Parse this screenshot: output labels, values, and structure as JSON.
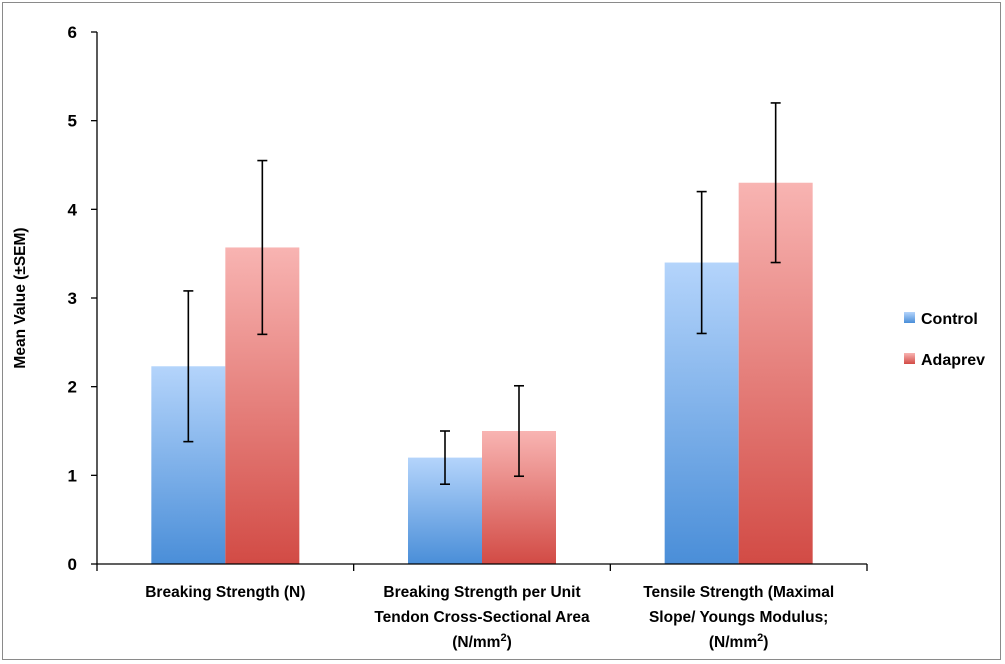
{
  "chart_data": {
    "type": "bar",
    "ylabel": "Mean Value (±SEM)",
    "ylim": [
      0,
      6
    ],
    "yticks": [
      "0",
      "1",
      "2",
      "3",
      "4",
      "5",
      "6"
    ],
    "grid": false,
    "legend_position": "right",
    "categories": [
      {
        "lines": [
          "Breaking Strength (N)"
        ]
      },
      {
        "lines": [
          "Breaking Strength per Unit",
          "Tendon Cross-Sectional Area",
          "(N/mm2)"
        ]
      },
      {
        "lines": [
          "Tensile Strength (Maximal",
          "Slope/ Youngs Modulus;",
          "(N/mm2)"
        ]
      }
    ],
    "series": [
      {
        "name": "Control",
        "values": [
          2.23,
          1.2,
          3.4
        ],
        "errors": [
          0.85,
          0.3,
          0.8
        ],
        "color_top": "#b4d4fb",
        "color_bottom": "#4a8ed8"
      },
      {
        "name": "Adaprev",
        "values": [
          3.57,
          1.5,
          4.3
        ],
        "errors": [
          0.98,
          0.51,
          0.9
        ],
        "color_top": "#f8b4b2",
        "color_bottom": "#d24b45"
      }
    ]
  }
}
